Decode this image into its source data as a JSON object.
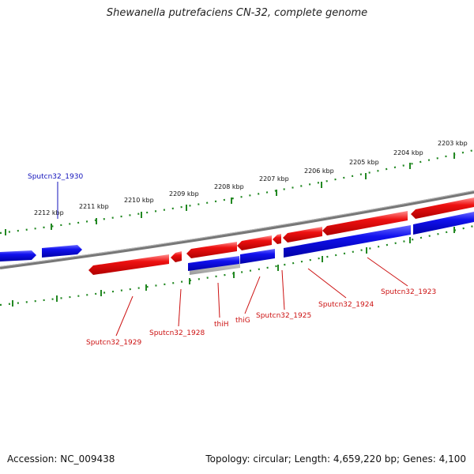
{
  "title": "Shewanella putrefaciens CN-32, complete genome",
  "footer": {
    "accession": "Accession: NC_009438",
    "topology": "Topology: circular; Length: 4,659,220 bp; Genes: 4,100"
  },
  "colors": {
    "forward": "#ee1111",
    "reverse": "#1111ee",
    "backbone": "#888888",
    "ticks": "#228822"
  },
  "kbp_ticks": [
    {
      "label": "2212 kbp"
    },
    {
      "label": "2211 kbp"
    },
    {
      "label": "2210 kbp"
    },
    {
      "label": "2209 kbp"
    },
    {
      "label": "2208 kbp"
    },
    {
      "label": "2207 kbp"
    },
    {
      "label": "2206 kbp"
    },
    {
      "label": "2205 kbp"
    },
    {
      "label": "2204 kbp"
    },
    {
      "label": "2203 kbp"
    }
  ],
  "gene_labels": {
    "sputcn32_1930": "Sputcn32_1930",
    "sputcn32_1929": "Sputcn32_1929",
    "sputcn32_1928": "Sputcn32_1928",
    "thiH": "thiH",
    "thiG": "thiG",
    "sputcn32_1925": "Sputcn32_1925",
    "sputcn32_1924": "Sputcn32_1924",
    "sputcn32_1923": "Sputcn32_1923"
  }
}
